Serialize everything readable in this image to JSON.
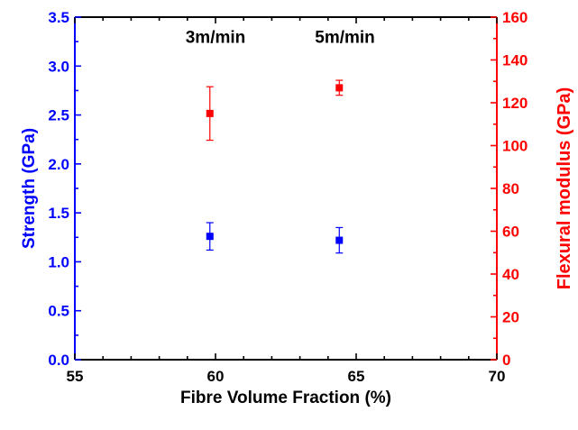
{
  "chart_data": {
    "type": "scatter",
    "xlabel": "Fibre Volume Fraction (%)",
    "xlim": [
      55,
      70
    ],
    "x_ticks": [
      55,
      60,
      65,
      70
    ],
    "x_tick_labels": [
      "55",
      "60",
      "65",
      "70"
    ],
    "x_minor_ticks": [
      56,
      57,
      58,
      59,
      61,
      62,
      63,
      64,
      66,
      67,
      68,
      69
    ],
    "y_left": {
      "label": "Strength (GPa)",
      "color": "#0000ff",
      "lim": [
        0,
        3.5
      ],
      "ticks": [
        0,
        0.5,
        1,
        1.5,
        2,
        2.5,
        3,
        3.5
      ],
      "tick_labels": [
        "0.0",
        "0.5",
        "1.0",
        "1.5",
        "2.0",
        "2.5",
        "3.0",
        "3.5"
      ],
      "minor_ticks": [
        0.25,
        0.75,
        1.25,
        1.75,
        2.25,
        2.75,
        3.25
      ]
    },
    "y_right": {
      "label": "Flexural modulus (GPa)",
      "color": "#ff0000",
      "lim": [
        0,
        160
      ],
      "ticks": [
        0,
        20,
        40,
        60,
        80,
        100,
        120,
        140,
        160
      ],
      "tick_labels": [
        "0",
        "20",
        "40",
        "60",
        "80",
        "100",
        "120",
        "140",
        "160"
      ],
      "minor_ticks": [
        10,
        30,
        50,
        70,
        90,
        110,
        130,
        150
      ]
    },
    "series": [
      {
        "axis": "left",
        "color": "#0000ff",
        "marker": "square",
        "points": [
          {
            "x": 59.8,
            "y": 1.26,
            "err": 0.14
          },
          {
            "x": 64.4,
            "y": 1.22,
            "err": 0.13
          }
        ]
      },
      {
        "axis": "right",
        "color": "#ff0000",
        "marker": "square",
        "points": [
          {
            "x": 59.8,
            "y": 115,
            "err": 12.5
          },
          {
            "x": 64.4,
            "y": 127,
            "err": 3.5
          }
        ]
      }
    ],
    "annotations": [
      {
        "text": "3m/min",
        "x": 60.0,
        "y": 3.3
      },
      {
        "text": "5m/min",
        "x": 64.6,
        "y": 3.3
      }
    ],
    "grid": false,
    "legend": "none"
  }
}
